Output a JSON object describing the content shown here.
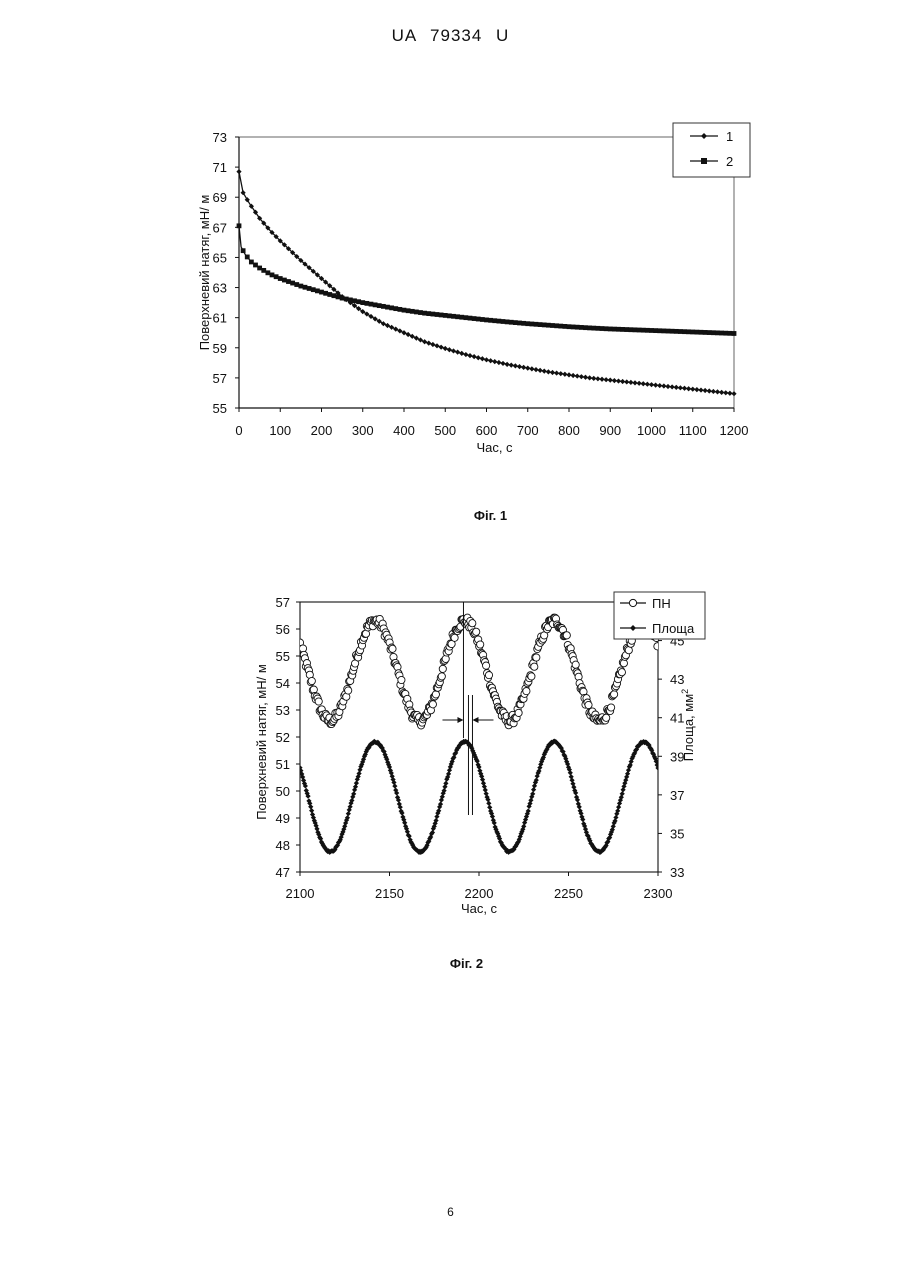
{
  "header": "UA   79334   U",
  "page_number": "6",
  "chart_data": [
    {
      "type": "line",
      "caption": "Фіг. 1",
      "xlabel": "Час, с",
      "ylabel": "Поверхневий натяг, мН/ м",
      "xlim": [
        0,
        1200
      ],
      "ylim": [
        55,
        73
      ],
      "x_ticks": [
        0,
        100,
        200,
        300,
        400,
        500,
        600,
        700,
        800,
        900,
        1000,
        1100,
        1200
      ],
      "y_ticks": [
        55,
        57,
        59,
        61,
        63,
        65,
        67,
        69,
        71,
        73
      ],
      "grid": false,
      "legend": "top-right",
      "series": [
        {
          "name": "1",
          "marker": "diamond",
          "color": "#111111",
          "x": [
            0,
            10,
            25,
            50,
            75,
            100,
            150,
            200,
            250,
            300,
            350,
            400,
            450,
            500,
            550,
            600,
            650,
            700,
            750,
            800,
            850,
            900,
            950,
            1000,
            1050,
            1100,
            1150,
            1200
          ],
          "y": [
            70.7,
            69.3,
            68.6,
            67.6,
            66.8,
            66.1,
            64.8,
            63.6,
            62.4,
            61.4,
            60.6,
            60.0,
            59.4,
            58.95,
            58.55,
            58.2,
            57.9,
            57.65,
            57.4,
            57.2,
            57.0,
            56.85,
            56.7,
            56.55,
            56.4,
            56.25,
            56.1,
            55.95
          ]
        },
        {
          "name": "2",
          "marker": "square",
          "color": "#111111",
          "x": [
            0,
            5,
            15,
            30,
            50,
            75,
            100,
            150,
            200,
            250,
            300,
            350,
            400,
            450,
            500,
            550,
            600,
            650,
            700,
            750,
            800,
            850,
            900,
            950,
            1000,
            1050,
            1100,
            1150,
            1200
          ],
          "y": [
            67.1,
            65.7,
            65.2,
            64.7,
            64.3,
            63.9,
            63.6,
            63.1,
            62.7,
            62.3,
            62.0,
            61.75,
            61.5,
            61.3,
            61.15,
            61.0,
            60.85,
            60.72,
            60.6,
            60.5,
            60.4,
            60.32,
            60.25,
            60.2,
            60.15,
            60.1,
            60.05,
            60.0,
            59.95
          ]
        }
      ]
    },
    {
      "type": "scatter",
      "caption": "Фіг. 2",
      "xlabel": "Час, с",
      "ylabel": "Поверхневий натяг, мН/ м",
      "y2label": "Площа, мм",
      "y2label_sup": "2",
      "xlim": [
        2100,
        2300
      ],
      "ylim": [
        47,
        57
      ],
      "y2lim": [
        33,
        47
      ],
      "x_ticks": [
        2100,
        2150,
        2200,
        2250,
        2300
      ],
      "y_ticks": [
        47,
        48,
        49,
        50,
        51,
        52,
        53,
        54,
        55,
        56,
        57
      ],
      "y2_ticks": [
        33,
        35,
        37,
        39,
        41,
        43,
        45
      ],
      "grid": false,
      "legend": "top-right",
      "series": [
        {
          "name": "ПН",
          "marker": "circle-open",
          "axis": "left",
          "model": {
            "center": 54.45,
            "amplitude": 1.85,
            "period_s": 50,
            "peak_at_s": 2142,
            "noise": 0.18,
            "x_start": 2100,
            "x_end": 2300,
            "step_s": 0.55
          }
        },
        {
          "name": "Площа",
          "marker": "diamond",
          "axis": "right",
          "model": {
            "center": 36.9,
            "amplitude": 2.85,
            "period_s": 50,
            "peak_at_s": 2142,
            "noise": 0.04,
            "x_start": 2100,
            "x_end": 2300,
            "step_s": 0.5
          }
        }
      ],
      "annotation": {
        "type": "phase-shift-marker",
        "x": 2193,
        "description_arrows": true
      }
    }
  ]
}
